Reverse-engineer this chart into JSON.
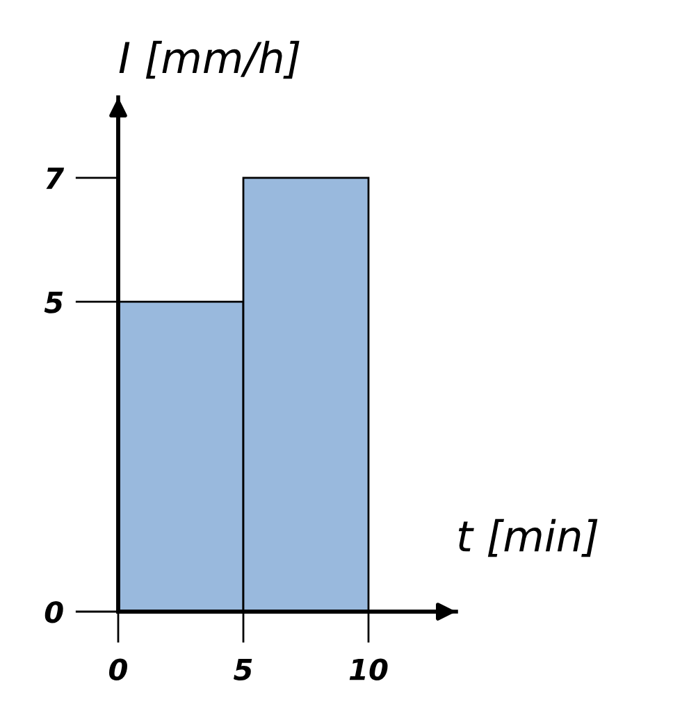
{
  "chart_data": {
    "type": "histogram",
    "xlabel": "t [min]",
    "ylabel": "I [mm/h]",
    "bins": [
      0,
      5,
      10
    ],
    "values": [
      5,
      7
    ],
    "color": "#99b9dd",
    "xlim": [
      0,
      13.5
    ],
    "ylim": [
      0,
      8.3
    ],
    "xticks": [
      0,
      5,
      10
    ],
    "yticks": [
      0,
      5,
      7
    ],
    "grid": false
  }
}
